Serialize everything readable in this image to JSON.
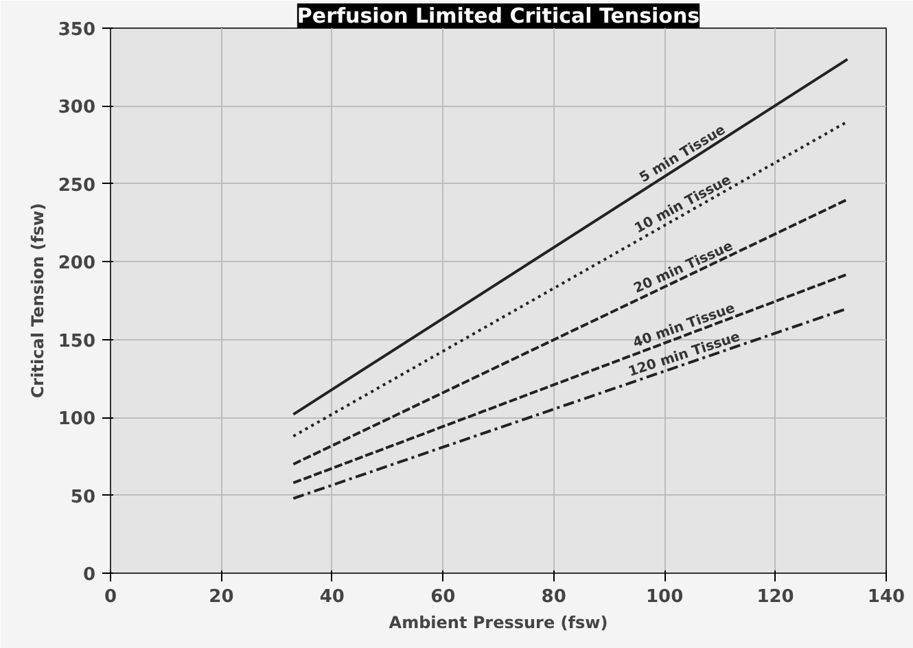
{
  "chart_data": {
    "type": "line",
    "title": "Perfusion Limited Critical Tensions",
    "xlabel": "Ambient Pressure (fsw)",
    "ylabel": "Critical Tension (fsw)",
    "x": [
      33,
      133
    ],
    "series": [
      {
        "color": "#222222",
        "line_style": "solid",
        "values": [
          102,
          330
        ]
      },
      {
        "color": "#222222",
        "line_style": "dotted",
        "values": [
          88,
          290
        ]
      },
      {
        "color": "#222222",
        "line_style": "dashed",
        "values": [
          70,
          240
        ]
      },
      {
        "color": "#222222",
        "line_style": "dashed",
        "values": [
          58,
          192
        ]
      },
      {
        "color": "#222222",
        "line_style": "dashdot",
        "values": [
          48,
          170
        ]
      }
    ],
    "annotations": [
      "5 min Tissue",
      "10 min Tissue",
      "20 min Tissue",
      "40 min Tissue",
      "120 min Tissue"
    ],
    "xlim": [
      0,
      140
    ],
    "ylim": [
      0,
      350
    ],
    "xticks": [
      0,
      20,
      40,
      60,
      80,
      100,
      120,
      140
    ],
    "yticks": [
      0,
      50,
      100,
      150,
      200,
      250,
      300,
      350
    ],
    "grid": true,
    "marker": "none"
  }
}
